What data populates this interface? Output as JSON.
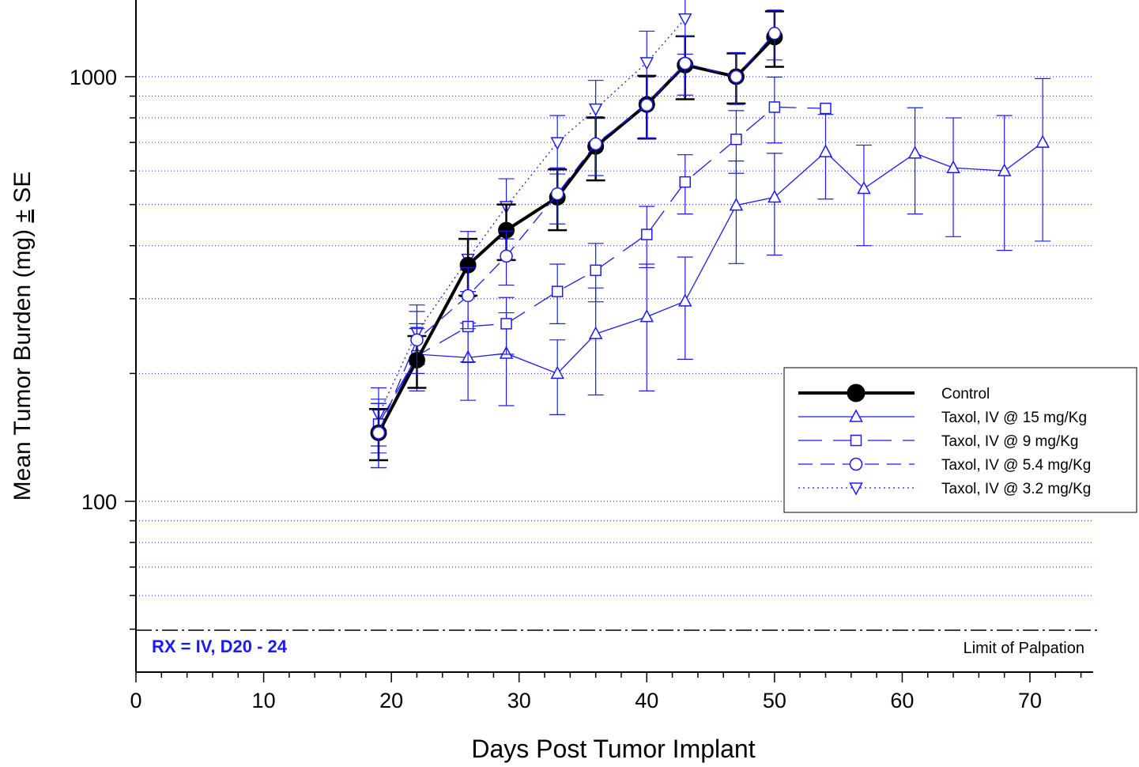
{
  "chart_data": {
    "type": "line",
    "xlabel": "Days Post Tumor Implant",
    "ylabel": "Mean Tumor Burden (mg) ± SE",
    "ylabel_parts": {
      "before": "Mean Tumor Burden (mg) ",
      "pm": "±",
      "after": " SE"
    },
    "x_scale": "linear",
    "y_scale": "log",
    "xlim": [
      0,
      75
    ],
    "ylim": [
      38,
      1600
    ],
    "x_ticks": [
      0,
      10,
      20,
      30,
      40,
      50,
      60,
      70
    ],
    "x_tick_labels": [
      "0",
      "10",
      "20",
      "30",
      "40",
      "50",
      "60",
      "70"
    ],
    "y_ticks": [
      100,
      1000
    ],
    "y_tick_labels": [
      "100",
      "1000"
    ],
    "grid": "horizontal dotted at log minor ticks",
    "legend_position": "right-middle",
    "annotation": {
      "text": "RX = IV, D20 - 24",
      "color": "#1a1aff"
    },
    "reference_line": {
      "label": "Limit of Palpation",
      "y": 50
    },
    "series": [
      {
        "name": "Control",
        "color": "#000000",
        "marker": "filled-circle",
        "line": "solid-thick",
        "x": [
          19,
          22,
          26,
          29,
          33,
          36,
          40,
          43,
          47,
          50
        ],
        "y": [
          145,
          215,
          360,
          435,
          520,
          685,
          860,
          1065,
          1000,
          1240
        ],
        "err": [
          20,
          30,
          55,
          65,
          85,
          115,
          145,
          180,
          135,
          185
        ]
      },
      {
        "name": "Taxol, IV @ 15 mg/Kg",
        "color": "#1a1aff",
        "marker": "triangle-up",
        "line": "solid",
        "x": [
          19,
          22,
          26,
          29,
          33,
          36,
          40,
          43,
          47,
          50,
          54,
          57,
          61,
          64,
          68,
          71
        ],
        "y": [
          145,
          222,
          218,
          223,
          200,
          248,
          272,
          296,
          498,
          520,
          665,
          545,
          660,
          610,
          600,
          700
        ],
        "err": [
          25,
          40,
          45,
          55,
          40,
          70,
          90,
          80,
          135,
          140,
          150,
          145,
          185,
          190,
          210,
          290
        ]
      },
      {
        "name": "Taxol, IV @ 9 mg/Kg",
        "color": "#1a1aff",
        "marker": "square",
        "line": "long-dash",
        "x": [
          19,
          22,
          26,
          29,
          33,
          36,
          40,
          43,
          47,
          50,
          54
        ],
        "y": [
          152,
          220,
          258,
          262,
          312,
          350,
          425,
          565,
          712,
          848,
          842
        ],
        "err": [
          22,
          35,
          45,
          40,
          50,
          55,
          70,
          90,
          120,
          150,
          0
        ]
      },
      {
        "name": "Taxol, IV @ 5.4 mg/Kg",
        "color": "#1a1aff",
        "marker": "open-circle",
        "line": "dash",
        "x": [
          19,
          22,
          26,
          29,
          33,
          36,
          40,
          43,
          47,
          50
        ],
        "y": [
          145,
          240,
          305,
          378,
          530,
          695,
          858,
          1075,
          1000,
          1265
        ],
        "err": [
          25,
          40,
          50,
          55,
          80,
          110,
          140,
          170,
          140,
          170
        ]
      },
      {
        "name": "Taxol, IV @ 3.2 mg/Kg",
        "color": "#1a1aff",
        "marker": "triangle-down",
        "line": "dotted",
        "x": [
          19,
          22,
          26,
          29,
          33,
          36,
          40,
          43
        ],
        "y": [
          160,
          250,
          372,
          495,
          700,
          840,
          1080,
          1370
        ],
        "err": [
          25,
          40,
          60,
          80,
          110,
          140,
          200,
          240
        ]
      }
    ]
  }
}
